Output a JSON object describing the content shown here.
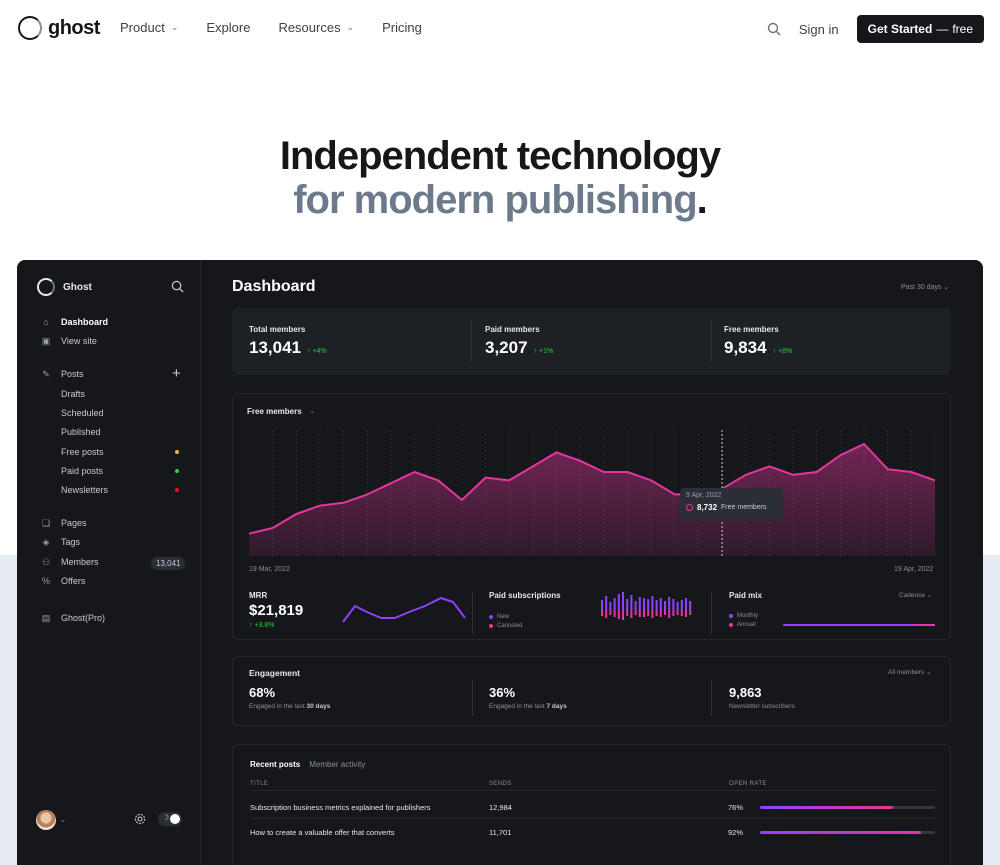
{
  "nav": {
    "brand": "ghost",
    "links": [
      {
        "label": "Product",
        "has_dropdown": true
      },
      {
        "label": "Explore",
        "has_dropdown": false
      },
      {
        "label": "Resources",
        "has_dropdown": true
      },
      {
        "label": "Pricing",
        "has_dropdown": false
      }
    ],
    "signin": "Sign in",
    "cta_main": "Get Started",
    "cta_sep": "—",
    "cta_free": "free"
  },
  "hero": {
    "line1": "Independent technology",
    "line2": "for modern publishing",
    "period": "."
  },
  "dashboard": {
    "brand": "Ghost",
    "sidebar": {
      "items": [
        {
          "label": "Dashboard",
          "icon": "home-icon",
          "active": true
        },
        {
          "label": "View site",
          "icon": "layout-icon"
        },
        {
          "label": "Posts",
          "icon": "edit-icon"
        },
        {
          "label": "Pages",
          "icon": "pages-icon"
        },
        {
          "label": "Tags",
          "icon": "tag-icon"
        },
        {
          "label": "Members",
          "icon": "members-icon"
        },
        {
          "label": "Offers",
          "icon": "percent-icon"
        },
        {
          "label": "Ghost(Pro)",
          "icon": "card-icon"
        }
      ],
      "post_subitems": [
        {
          "label": "Drafts"
        },
        {
          "label": "Scheduled"
        },
        {
          "label": "Published"
        },
        {
          "label": "Free posts",
          "dot": "#f5b33b"
        },
        {
          "label": "Paid posts",
          "dot": "#30cf43"
        },
        {
          "label": "Newsletters",
          "dot": "#f50b23"
        }
      ],
      "members_count": "13,041"
    },
    "title": "Dashboard",
    "period": "Past 30 days",
    "kpis": [
      {
        "label": "Total members",
        "value": "13,041",
        "delta": "+4%"
      },
      {
        "label": "Paid members",
        "value": "3,207",
        "delta": "+1%"
      },
      {
        "label": "Free members",
        "value": "9,834",
        "delta": "+8%"
      }
    ],
    "members_chart": {
      "title": "Free members",
      "start_date": "19 Mar, 2022",
      "end_date": "19 Apr, 2022",
      "tooltip_date": "9 Apr, 2022",
      "tooltip_value": "8,732",
      "tooltip_label": "Free members",
      "accent": "#e6359d"
    },
    "mrr": {
      "label": "MRR",
      "value": "$21,819",
      "delta": "+3.8%"
    },
    "paid_subs": {
      "label": "Paid subscriptions",
      "legend_new": "New",
      "legend_canceled": "Canceled"
    },
    "paid_mix": {
      "label": "Paid mix",
      "cadence": "Cadence",
      "legend_monthly": "Monthly",
      "legend_annual": "Annual"
    },
    "engagement": {
      "title": "Engagement",
      "filter": "All members",
      "stats": [
        {
          "value": "68%",
          "sub_prefix": "Engaged in the last ",
          "sub_bold": "30 days"
        },
        {
          "value": "36%",
          "sub_prefix": "Engaged in the last ",
          "sub_bold": "7 days"
        },
        {
          "value": "9,863",
          "sub_prefix": "Newsletter subscribers",
          "sub_bold": ""
        }
      ]
    },
    "recent": {
      "tab_active": "Recent posts",
      "tab_other": "Member activity",
      "columns": [
        "TITLE",
        "SENDS",
        "OPEN RATE"
      ],
      "rows": [
        {
          "title": "Subscription business metrics explained for publishers",
          "sends": "12,984",
          "open_rate": "76%",
          "open_value": 0.76
        },
        {
          "title": "How to create a valuable offer that converts",
          "sends": "11,701",
          "open_rate": "92%",
          "open_value": 0.92
        }
      ]
    }
  },
  "chart_data": {
    "type": "area",
    "series": [
      {
        "name": "Free members",
        "values": [
          8,
          10,
          15,
          18,
          19,
          22,
          26,
          30,
          27,
          20,
          28,
          27,
          32,
          37,
          34,
          30,
          30,
          27,
          22,
          22,
          24,
          29,
          32,
          29,
          30,
          36,
          40,
          31,
          30,
          27
        ]
      }
    ],
    "x_start": "19 Mar, 2022",
    "x_end": "19 Apr, 2022"
  }
}
